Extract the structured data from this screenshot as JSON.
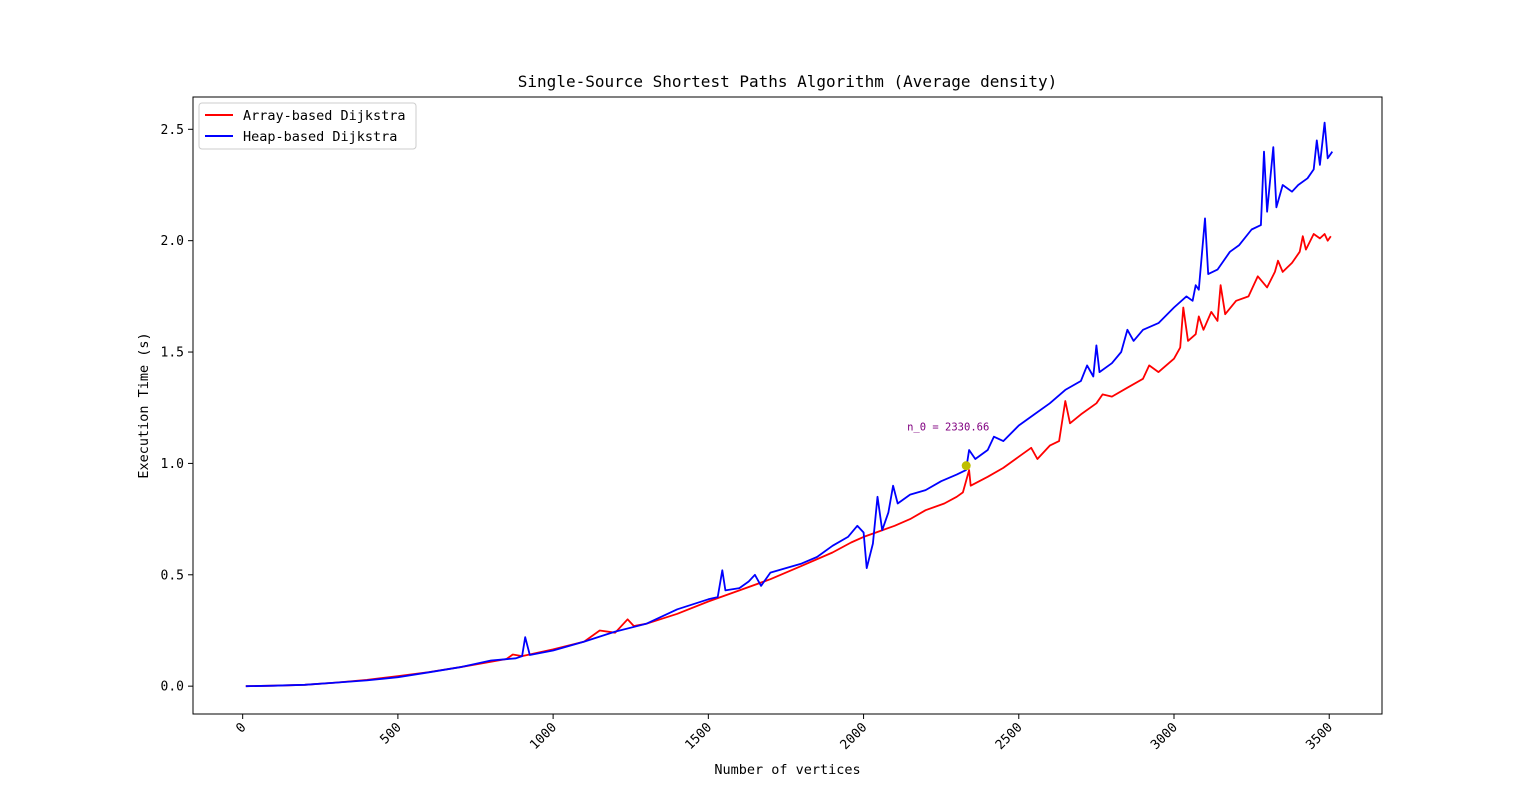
{
  "chart_data": {
    "type": "line",
    "title": "Single-Source Shortest Paths Algorithm (Average density)",
    "xlabel": "Number of vertices",
    "ylabel": "Execution Time (s)",
    "xlim": [
      -160,
      3670
    ],
    "ylim": [
      -0.125,
      2.645
    ],
    "xticks": [
      "0",
      "500",
      "1000",
      "1500",
      "2000",
      "2500",
      "3000",
      "3500"
    ],
    "yticks": [
      "0.0",
      "0.5",
      "1.0",
      "1.5",
      "2.0",
      "2.5"
    ],
    "grid": false,
    "legend_position": "top-left",
    "series": [
      {
        "name": "Array-based Dijkstra",
        "color": "#ff0000",
        "points": [
          [
            10,
            0.0
          ],
          [
            100,
            0.002
          ],
          [
            200,
            0.006
          ],
          [
            300,
            0.016
          ],
          [
            400,
            0.028
          ],
          [
            500,
            0.045
          ],
          [
            600,
            0.063
          ],
          [
            700,
            0.085
          ],
          [
            800,
            0.11
          ],
          [
            850,
            0.122
          ],
          [
            870,
            0.142
          ],
          [
            900,
            0.135
          ],
          [
            1000,
            0.165
          ],
          [
            1100,
            0.2
          ],
          [
            1150,
            0.25
          ],
          [
            1200,
            0.24
          ],
          [
            1240,
            0.3
          ],
          [
            1260,
            0.27
          ],
          [
            1300,
            0.28
          ],
          [
            1400,
            0.325
          ],
          [
            1500,
            0.38
          ],
          [
            1600,
            0.43
          ],
          [
            1700,
            0.48
          ],
          [
            1800,
            0.54
          ],
          [
            1900,
            0.6
          ],
          [
            1960,
            0.645
          ],
          [
            2000,
            0.67
          ],
          [
            2040,
            0.69
          ],
          [
            2100,
            0.72
          ],
          [
            2150,
            0.75
          ],
          [
            2200,
            0.79
          ],
          [
            2260,
            0.82
          ],
          [
            2300,
            0.85
          ],
          [
            2320,
            0.87
          ],
          [
            2340,
            0.97
          ],
          [
            2345,
            0.9
          ],
          [
            2400,
            0.94
          ],
          [
            2450,
            0.98
          ],
          [
            2500,
            1.03
          ],
          [
            2540,
            1.07
          ],
          [
            2560,
            1.02
          ],
          [
            2600,
            1.08
          ],
          [
            2630,
            1.1
          ],
          [
            2650,
            1.28
          ],
          [
            2665,
            1.18
          ],
          [
            2700,
            1.22
          ],
          [
            2750,
            1.27
          ],
          [
            2770,
            1.31
          ],
          [
            2800,
            1.3
          ],
          [
            2850,
            1.34
          ],
          [
            2900,
            1.38
          ],
          [
            2920,
            1.44
          ],
          [
            2950,
            1.41
          ],
          [
            3000,
            1.47
          ],
          [
            3020,
            1.52
          ],
          [
            3030,
            1.7
          ],
          [
            3045,
            1.55
          ],
          [
            3070,
            1.58
          ],
          [
            3080,
            1.66
          ],
          [
            3095,
            1.6
          ],
          [
            3120,
            1.68
          ],
          [
            3140,
            1.64
          ],
          [
            3150,
            1.8
          ],
          [
            3165,
            1.67
          ],
          [
            3200,
            1.73
          ],
          [
            3240,
            1.75
          ],
          [
            3270,
            1.84
          ],
          [
            3300,
            1.79
          ],
          [
            3325,
            1.86
          ],
          [
            3335,
            1.91
          ],
          [
            3350,
            1.86
          ],
          [
            3380,
            1.9
          ],
          [
            3405,
            1.95
          ],
          [
            3415,
            2.02
          ],
          [
            3425,
            1.96
          ],
          [
            3450,
            2.03
          ],
          [
            3470,
            2.01
          ],
          [
            3485,
            2.03
          ],
          [
            3495,
            2.0
          ],
          [
            3505,
            2.02
          ]
        ]
      },
      {
        "name": "Heap-based Dijkstra",
        "color": "#0000ff",
        "points": [
          [
            10,
            0.0
          ],
          [
            100,
            0.002
          ],
          [
            200,
            0.006
          ],
          [
            300,
            0.016
          ],
          [
            400,
            0.026
          ],
          [
            500,
            0.04
          ],
          [
            600,
            0.062
          ],
          [
            700,
            0.085
          ],
          [
            800,
            0.115
          ],
          [
            880,
            0.125
          ],
          [
            900,
            0.135
          ],
          [
            910,
            0.22
          ],
          [
            925,
            0.14
          ],
          [
            1000,
            0.16
          ],
          [
            1100,
            0.2
          ],
          [
            1200,
            0.245
          ],
          [
            1300,
            0.28
          ],
          [
            1400,
            0.345
          ],
          [
            1500,
            0.39
          ],
          [
            1530,
            0.4
          ],
          [
            1545,
            0.52
          ],
          [
            1555,
            0.43
          ],
          [
            1600,
            0.44
          ],
          [
            1630,
            0.47
          ],
          [
            1650,
            0.5
          ],
          [
            1670,
            0.45
          ],
          [
            1700,
            0.51
          ],
          [
            1750,
            0.53
          ],
          [
            1800,
            0.55
          ],
          [
            1850,
            0.58
          ],
          [
            1900,
            0.63
          ],
          [
            1950,
            0.67
          ],
          [
            1980,
            0.72
          ],
          [
            2000,
            0.69
          ],
          [
            2010,
            0.53
          ],
          [
            2030,
            0.64
          ],
          [
            2045,
            0.85
          ],
          [
            2060,
            0.7
          ],
          [
            2080,
            0.78
          ],
          [
            2095,
            0.9
          ],
          [
            2110,
            0.82
          ],
          [
            2150,
            0.86
          ],
          [
            2200,
            0.88
          ],
          [
            2250,
            0.92
          ],
          [
            2300,
            0.95
          ],
          [
            2330,
            0.97
          ],
          [
            2340,
            1.06
          ],
          [
            2360,
            1.02
          ],
          [
            2400,
            1.06
          ],
          [
            2420,
            1.12
          ],
          [
            2450,
            1.1
          ],
          [
            2500,
            1.17
          ],
          [
            2550,
            1.22
          ],
          [
            2600,
            1.27
          ],
          [
            2650,
            1.33
          ],
          [
            2700,
            1.37
          ],
          [
            2720,
            1.44
          ],
          [
            2740,
            1.39
          ],
          [
            2750,
            1.53
          ],
          [
            2760,
            1.41
          ],
          [
            2800,
            1.45
          ],
          [
            2830,
            1.5
          ],
          [
            2850,
            1.6
          ],
          [
            2870,
            1.55
          ],
          [
            2900,
            1.6
          ],
          [
            2950,
            1.63
          ],
          [
            3000,
            1.7
          ],
          [
            3040,
            1.75
          ],
          [
            3060,
            1.73
          ],
          [
            3070,
            1.8
          ],
          [
            3080,
            1.78
          ],
          [
            3100,
            2.1
          ],
          [
            3110,
            1.85
          ],
          [
            3140,
            1.87
          ],
          [
            3180,
            1.95
          ],
          [
            3210,
            1.98
          ],
          [
            3250,
            2.05
          ],
          [
            3280,
            2.07
          ],
          [
            3290,
            2.4
          ],
          [
            3300,
            2.13
          ],
          [
            3320,
            2.42
          ],
          [
            3330,
            2.15
          ],
          [
            3350,
            2.25
          ],
          [
            3380,
            2.22
          ],
          [
            3400,
            2.25
          ],
          [
            3430,
            2.28
          ],
          [
            3450,
            2.32
          ],
          [
            3460,
            2.45
          ],
          [
            3470,
            2.34
          ],
          [
            3485,
            2.53
          ],
          [
            3495,
            2.37
          ],
          [
            3510,
            2.4
          ]
        ]
      }
    ],
    "annotations": [
      {
        "text": "n_0 = 2330.66",
        "x": 2330.66,
        "y": 0.99,
        "marker_color": "#bfbf00",
        "text_color": "#800080"
      }
    ]
  }
}
